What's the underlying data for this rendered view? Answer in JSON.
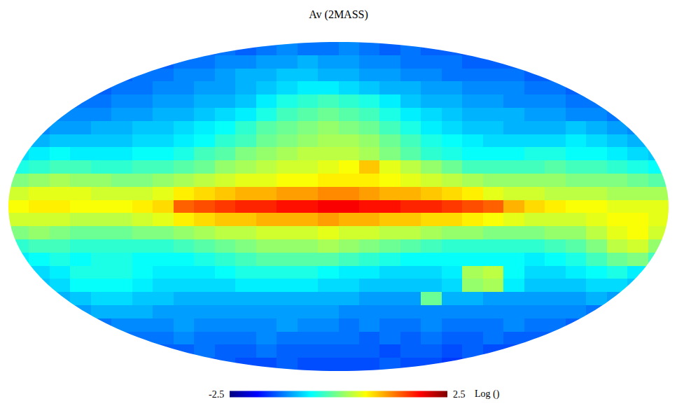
{
  "chart_data": {
    "type": "heatmap",
    "title": "Av (2MASS)",
    "tick_labels": false,
    "xlim": [
      -2,
      2
    ],
    "ylim": [
      -1,
      1
    ],
    "x": [
      -1.9375,
      -1.8125,
      -1.6875,
      -1.5625,
      -1.4375,
      -1.3125,
      -1.1875,
      -1.0625,
      -0.9375,
      -0.8125,
      -0.6875,
      -0.5625,
      -0.4375,
      -0.3125,
      -0.1875,
      -0.0625,
      0.0625,
      0.1875,
      0.3125,
      0.4375,
      0.5625,
      0.6875,
      0.8125,
      0.9375,
      1.0625,
      1.1875,
      1.3125,
      1.4375,
      1.5625,
      1.6875,
      1.8125,
      1.9375
    ],
    "y": [
      0.96,
      0.88,
      0.8,
      0.72,
      0.64,
      0.56,
      0.48,
      0.4,
      0.32,
      0.24,
      0.16,
      0.08,
      0,
      -0.08,
      -0.16,
      -0.24,
      -0.32,
      -0.4,
      -0.48,
      -0.56,
      -0.64,
      -0.72,
      -0.8,
      -0.88,
      -0.96
    ],
    "z": [
      [
        null,
        null,
        null,
        null,
        null,
        null,
        null,
        null,
        null,
        -1.4,
        -1.3,
        -1.4,
        -1.3,
        -1.2,
        -1.3,
        -1.3,
        -1.2,
        -1.3,
        -1.4,
        -1.3,
        -1.4,
        -1.4,
        -1.5,
        null,
        null,
        null,
        null,
        null,
        null,
        null,
        null,
        null
      ],
      [
        null,
        null,
        null,
        null,
        null,
        null,
        null,
        -1.4,
        -1.3,
        -1.3,
        -1.2,
        -1.2,
        -1.1,
        -1.1,
        -1.0,
        -1.1,
        -1.1,
        -1.2,
        -1.2,
        -1.3,
        -1.3,
        -1.3,
        -1.4,
        -1.4,
        -1.4,
        null,
        null,
        null,
        null,
        null,
        null,
        null
      ],
      [
        null,
        null,
        null,
        null,
        null,
        -1.4,
        -1.3,
        -1.3,
        -1.2,
        -1.2,
        -1.1,
        -1.0,
        -1.0,
        -0.9,
        -0.9,
        -1.0,
        -1.0,
        -1.1,
        -1.1,
        -1.2,
        -1.2,
        -1.3,
        -1.3,
        -1.3,
        -1.3,
        -1.4,
        -1.4,
        null,
        null,
        null,
        null,
        null
      ],
      [
        null,
        null,
        null,
        null,
        -1.4,
        -1.3,
        -1.3,
        -1.2,
        -1.2,
        -1.1,
        -1.1,
        -1.0,
        -0.9,
        -0.8,
        -0.7,
        -0.7,
        -0.8,
        -0.9,
        -1.0,
        -1.0,
        -1.1,
        -1.1,
        -1.2,
        -1.2,
        -1.2,
        -1.3,
        -1.3,
        -1.4,
        null,
        null,
        null,
        null
      ],
      [
        null,
        null,
        null,
        -1.3,
        -1.3,
        -1.2,
        -1.2,
        -1.1,
        -1.1,
        -1.0,
        -1.0,
        -0.9,
        -0.7,
        -0.5,
        -0.4,
        -0.3,
        -0.4,
        -0.5,
        -0.7,
        -0.9,
        -1.0,
        -1.0,
        -1.1,
        -1.1,
        -1.2,
        -1.2,
        -1.2,
        -1.3,
        -1.3,
        null,
        null,
        null
      ],
      [
        null,
        null,
        -1.2,
        -1.2,
        -1.2,
        -1.1,
        -1.1,
        -1.0,
        -1.0,
        -0.9,
        -0.8,
        -0.7,
        -0.5,
        -0.3,
        -0.2,
        -0.1,
        -0.2,
        -0.3,
        -0.5,
        -0.7,
        -0.8,
        -0.9,
        -1.0,
        -1.0,
        -1.0,
        -1.1,
        -1.1,
        -1.2,
        -1.2,
        -1.3,
        null,
        null
      ],
      [
        null,
        -1.2,
        -1.1,
        -1.1,
        -1.0,
        -1.0,
        -0.9,
        -0.9,
        -0.8,
        -0.7,
        -0.6,
        -0.4,
        -0.2,
        -0.1,
        0.0,
        0.1,
        0.0,
        -0.1,
        -0.3,
        -0.5,
        -0.7,
        -0.8,
        -0.9,
        -0.9,
        -1.0,
        -1.0,
        -1.0,
        -0.9,
        -1.0,
        -1.1,
        -1.2,
        null
      ],
      [
        null,
        -1.0,
        -0.9,
        -0.9,
        -0.9,
        -0.9,
        -0.8,
        -0.8,
        -0.7,
        -0.6,
        -0.4,
        -0.3,
        -0.1,
        0.0,
        0.1,
        0.2,
        0.2,
        0.1,
        -0.1,
        -0.3,
        -0.5,
        -0.6,
        -0.7,
        -0.8,
        -0.8,
        -0.8,
        -0.8,
        -0.7,
        -0.8,
        -0.9,
        -1.0,
        null
      ],
      [
        -0.8,
        -0.7,
        -0.6,
        -0.7,
        -0.7,
        -0.7,
        -0.6,
        -0.6,
        -0.5,
        -0.3,
        -0.2,
        0.0,
        0.1,
        0.2,
        0.3,
        0.3,
        0.3,
        0.2,
        0.0,
        -0.2,
        -0.4,
        -0.5,
        -0.6,
        -0.6,
        -0.6,
        -0.5,
        -0.5,
        -0.6,
        -0.6,
        -0.7,
        -0.8,
        -0.9
      ],
      [
        -0.5,
        -0.4,
        -0.3,
        -0.3,
        -0.4,
        -0.4,
        -0.3,
        -0.3,
        -0.2,
        -0.1,
        0.1,
        0.2,
        0.3,
        0.4,
        0.4,
        0.5,
        0.6,
        0.9,
        0.5,
        0.3,
        0.1,
        -0.1,
        -0.3,
        -0.3,
        -0.3,
        -0.3,
        -0.2,
        -0.3,
        -0.3,
        -0.4,
        -0.5,
        -0.6
      ],
      [
        0.0,
        0.1,
        0.2,
        0.1,
        0.1,
        0.0,
        0.0,
        0.1,
        0.2,
        0.3,
        0.4,
        0.5,
        0.5,
        0.6,
        0.6,
        0.7,
        0.7,
        0.7,
        0.6,
        0.5,
        0.4,
        0.3,
        0.2,
        0.1,
        0.1,
        0.1,
        0.1,
        0.0,
        0.0,
        0.0,
        -0.1,
        -0.2
      ],
      [
        0.4,
        0.5,
        0.5,
        0.5,
        0.4,
        0.4,
        0.4,
        0.5,
        0.7,
        0.8,
        0.9,
        1.0,
        1.0,
        1.1,
        1.1,
        1.2,
        1.2,
        1.1,
        1.0,
        1.0,
        0.9,
        0.8,
        0.7,
        0.5,
        0.4,
        0.4,
        0.3,
        0.3,
        0.3,
        0.2,
        0.2,
        0.2
      ],
      [
        0.6,
        0.7,
        0.7,
        0.6,
        0.6,
        0.6,
        0.7,
        0.8,
        1.4,
        1.5,
        1.6,
        1.7,
        1.7,
        1.8,
        1.8,
        1.9,
        1.9,
        1.8,
        1.8,
        1.7,
        1.7,
        1.6,
        1.5,
        1.4,
        1.0,
        0.8,
        0.7,
        0.6,
        0.6,
        0.5,
        0.5,
        0.5
      ],
      [
        0.4,
        0.4,
        0.4,
        0.3,
        0.3,
        0.3,
        0.4,
        0.5,
        0.7,
        0.8,
        0.9,
        0.9,
        1.0,
        1.0,
        1.0,
        1.1,
        1.0,
        1.0,
        0.9,
        0.9,
        0.8,
        0.8,
        0.7,
        0.6,
        0.5,
        0.4,
        0.4,
        0.4,
        0.5,
        0.6,
        0.6,
        0.5
      ],
      [
        0.0,
        0.1,
        0.0,
        -0.1,
        -0.1,
        -0.1,
        0.0,
        0.0,
        0.1,
        0.2,
        0.3,
        0.3,
        0.4,
        0.4,
        0.4,
        0.5,
        0.4,
        0.4,
        0.3,
        0.3,
        0.2,
        0.1,
        0.1,
        0.0,
        0.0,
        0.0,
        0.1,
        0.1,
        0.3,
        0.5,
        0.6,
        0.4
      ],
      [
        -0.4,
        -0.3,
        -0.3,
        -0.4,
        -0.4,
        -0.4,
        -0.4,
        -0.4,
        -0.3,
        -0.2,
        -0.1,
        0.0,
        0.1,
        0.1,
        0.1,
        0.2,
        0.1,
        0.0,
        -0.1,
        -0.2,
        -0.3,
        -0.4,
        -0.4,
        -0.4,
        -0.4,
        -0.4,
        -0.3,
        -0.2,
        0.0,
        0.3,
        0.4,
        0.1
      ],
      [
        -0.7,
        -0.6,
        -0.5,
        -0.6,
        -0.5,
        -0.5,
        -0.6,
        -0.6,
        -0.6,
        -0.5,
        -0.4,
        -0.3,
        -0.2,
        -0.2,
        -0.2,
        -0.2,
        -0.3,
        -0.4,
        -0.5,
        -0.6,
        -0.6,
        -0.6,
        -0.6,
        -0.6,
        -0.6,
        -0.7,
        -0.6,
        -0.5,
        -0.3,
        -0.1,
        0.0,
        -0.3
      ],
      [
        null,
        -0.8,
        -0.7,
        -0.5,
        -0.5,
        -0.5,
        -0.6,
        -0.7,
        -0.7,
        -0.7,
        -0.6,
        -0.5,
        -0.5,
        -0.5,
        -0.5,
        -0.6,
        -0.7,
        -0.7,
        -0.8,
        -0.8,
        -0.8,
        -0.7,
        0.2,
        0.3,
        -0.6,
        -0.8,
        -0.8,
        -0.7,
        -0.6,
        -0.5,
        -0.7,
        null
      ],
      [
        null,
        -0.9,
        -0.8,
        -0.6,
        -0.6,
        -0.6,
        -0.7,
        -0.8,
        -0.8,
        -0.8,
        -0.8,
        -0.7,
        -0.7,
        -0.7,
        -0.7,
        -0.8,
        -0.8,
        -0.9,
        -0.9,
        -0.9,
        -0.9,
        -0.8,
        0.1,
        0.2,
        -0.7,
        -0.9,
        -0.9,
        -0.9,
        -0.8,
        -0.8,
        -0.9,
        null
      ],
      [
        null,
        null,
        -1.0,
        -0.9,
        -0.8,
        -0.8,
        -0.9,
        -0.9,
        -1.0,
        -1.0,
        -1.0,
        -1.0,
        -1.0,
        -1.0,
        -1.0,
        -1.0,
        -1.0,
        -1.1,
        -1.1,
        -1.1,
        -0.1,
        -1.0,
        -1.0,
        -1.1,
        -1.1,
        -1.1,
        -1.1,
        -1.1,
        -1.0,
        -1.1,
        null,
        null
      ],
      [
        null,
        null,
        null,
        -1.1,
        -1.0,
        -1.0,
        -1.0,
        -1.1,
        -1.1,
        -1.1,
        -1.1,
        -1.1,
        -1.1,
        -1.1,
        -1.1,
        -1.1,
        -1.2,
        -1.2,
        -1.2,
        -1.2,
        -1.2,
        -1.2,
        -1.2,
        -1.2,
        -1.2,
        -1.2,
        -1.2,
        -1.2,
        -1.3,
        null,
        null,
        null
      ],
      [
        null,
        null,
        null,
        null,
        -1.3,
        -1.2,
        -1.2,
        -1.2,
        -1.1,
        -1.2,
        -1.2,
        -1.2,
        -1.2,
        -1.1,
        -1.2,
        -1.2,
        -1.3,
        -1.2,
        -1.3,
        -1.3,
        -1.2,
        -1.3,
        -1.3,
        -1.3,
        -1.2,
        -1.3,
        -1.3,
        -1.4,
        null,
        null,
        null,
        null
      ],
      [
        null,
        null,
        null,
        null,
        null,
        -1.3,
        -1.3,
        -1.3,
        -1.2,
        -1.3,
        -1.3,
        -1.3,
        -1.2,
        -1.3,
        -1.3,
        -1.3,
        -1.3,
        -1.4,
        -1.3,
        -1.4,
        -1.3,
        -1.4,
        -1.4,
        -1.3,
        -1.4,
        -1.4,
        -1.4,
        null,
        null,
        null,
        null,
        null
      ],
      [
        null,
        null,
        null,
        null,
        null,
        null,
        null,
        -1.4,
        -1.4,
        -1.3,
        -1.4,
        -1.4,
        -1.3,
        -1.4,
        -1.4,
        -1.4,
        -1.4,
        -1.4,
        -1.5,
        -1.4,
        -1.4,
        -1.5,
        -1.4,
        -1.5,
        -1.5,
        null,
        null,
        null,
        null,
        null,
        null,
        null
      ],
      [
        null,
        null,
        null,
        null,
        null,
        null,
        null,
        null,
        null,
        -1.5,
        -1.4,
        -1.5,
        -1.5,
        -1.4,
        -1.5,
        -1.5,
        -1.5,
        -1.5,
        -1.4,
        -1.5,
        -1.5,
        -1.6,
        -1.5,
        null,
        null,
        null,
        null,
        null,
        null,
        null,
        null,
        null
      ]
    ],
    "zlim": [
      -2.5,
      2.5
    ],
    "zticks": [
      -2.5,
      2.5
    ],
    "colorbar_title": "Log ()"
  }
}
